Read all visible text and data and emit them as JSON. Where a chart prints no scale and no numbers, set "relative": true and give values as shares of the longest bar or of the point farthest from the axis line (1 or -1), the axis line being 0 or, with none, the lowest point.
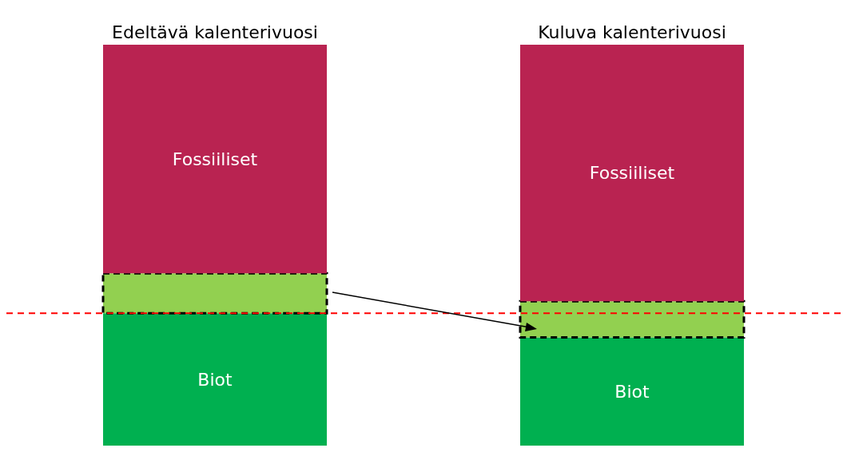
{
  "chart_data": {
    "type": "bar",
    "relative": true,
    "stacked": true,
    "categories": [
      "Edeltävä kalenterivuosi",
      "Kuluva kalenterivuosi"
    ],
    "series": [
      {
        "name": "Biot",
        "color": "#00b050",
        "values": [
          0.33,
          0.27
        ]
      },
      {
        "color": "#92d050",
        "values": [
          0.1,
          0.09
        ]
      },
      {
        "name": "Fossiiliset",
        "color": "#b92351",
        "values": [
          0.57,
          0.64
        ]
      }
    ],
    "ref_lines": [
      {
        "axis": "y",
        "value": 0.33,
        "color": "#ff0000",
        "line_style": "dashed"
      }
    ],
    "legend": false,
    "grid": false
  }
}
